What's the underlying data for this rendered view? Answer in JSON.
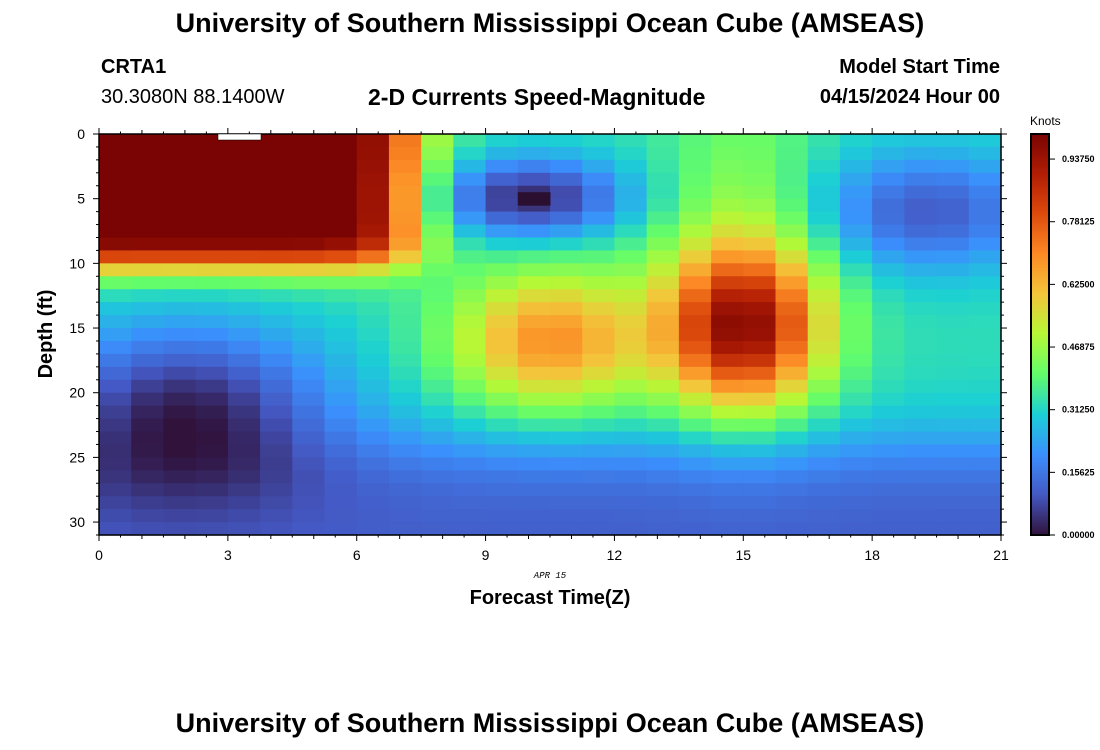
{
  "header": {
    "title": "University of Southern Mississippi Ocean Cube (AMSEAS)",
    "station_id": "CRTA1",
    "station_coords": "30.3080N  88.1400W",
    "subtitle": "2-D Currents Speed-Magnitude",
    "model_start_label": "Model Start Time",
    "model_start_value": "04/15/2024 Hour 00"
  },
  "footer": {
    "title": "University of Southern Mississippi Ocean Cube (AMSEAS)"
  },
  "chart_data": {
    "type": "heatmap",
    "title": "2-D Currents Speed-Magnitude",
    "xlabel": "Forecast Time(Z)",
    "ylabel": "Depth (ft)",
    "date_label": "APR 15",
    "xlim": [
      0,
      21
    ],
    "ylim": [
      0,
      31
    ],
    "y_inverted": true,
    "x_ticks": [
      0,
      3,
      6,
      9,
      12,
      15,
      18,
      21
    ],
    "y_ticks": [
      0,
      5,
      10,
      15,
      20,
      25,
      30
    ],
    "colorbar": {
      "label": "Knots",
      "min": 0.0,
      "max": 1.0,
      "ticks": [
        "0.00000",
        "0.15625",
        "0.31250",
        "0.46875",
        "0.62500",
        "0.78125",
        "0.93750"
      ],
      "tick_values": [
        0.0,
        0.15625,
        0.3125,
        0.46875,
        0.625,
        0.78125,
        0.9375
      ]
    },
    "grid": {
      "time_step_hours": 0.75,
      "depth_step_ft": 1.0
    },
    "features": [
      {
        "name": "surface jet",
        "time_range": [
          0,
          7
        ],
        "depth_range": [
          0,
          10
        ],
        "speed": 1.0
      },
      {
        "name": "upper minimum",
        "time": 10,
        "depth": 5,
        "speed": 0.05
      },
      {
        "name": "lower maximum",
        "time": 15,
        "depth": 15,
        "speed": 0.8
      },
      {
        "name": "mid maximum",
        "time": 10.5,
        "depth": 16,
        "speed": 0.65
      },
      {
        "name": "lower-left minimum",
        "time": 2,
        "depth": 21,
        "speed": 0.08
      },
      {
        "name": "upper-right minimum",
        "time": 19,
        "depth": 6,
        "speed": 0.12
      }
    ]
  }
}
